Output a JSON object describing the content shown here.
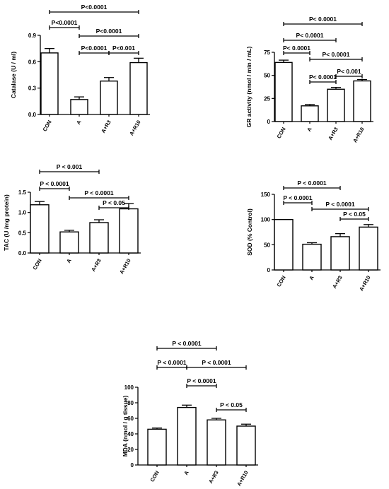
{
  "chart_data": [
    {
      "type": "bar",
      "categories": [
        "CON",
        "A",
        "A+R3",
        "A+R10"
      ],
      "values": [
        0.7,
        0.17,
        0.38,
        0.59
      ],
      "errors": [
        0.05,
        0.03,
        0.04,
        0.05
      ],
      "ylabel": "Catalase (U / ml)",
      "ylim": [
        0,
        0.9
      ],
      "yticks": [
        "0.0",
        "0.3",
        "0.6",
        "0.9"
      ],
      "comparisons": [
        {
          "from": 0,
          "to": 3,
          "label": "P<0.0001"
        },
        {
          "from": 0,
          "to": 1,
          "label": "P<0.0001"
        },
        {
          "from": 1,
          "to": 3,
          "label": "P<0.0001"
        },
        {
          "from": 1,
          "to": 2,
          "label": "P<0.0001"
        },
        {
          "from": 2,
          "to": 3,
          "label": "P<0.001"
        }
      ]
    },
    {
      "type": "bar",
      "categories": [
        "CON",
        "A",
        "A+R3",
        "A+R10"
      ],
      "values": [
        64,
        17,
        35,
        44
      ],
      "errors": [
        2.5,
        1.5,
        2.0,
        1.5
      ],
      "ylabel": "GR activity (nmol / min / mL)",
      "ylim": [
        0,
        75
      ],
      "yticks": [
        "0",
        "25",
        "50",
        "75"
      ],
      "comparisons": [
        {
          "from": 0,
          "to": 3,
          "label": "P< 0.0001"
        },
        {
          "from": 0,
          "to": 2,
          "label": "P< 0.0001"
        },
        {
          "from": 0,
          "to": 1,
          "label": "P< 0.0001"
        },
        {
          "from": 1,
          "to": 3,
          "label": "P< 0.0001"
        },
        {
          "from": 1,
          "to": 2,
          "label": "P< 0.0001"
        },
        {
          "from": 2,
          "to": 3,
          "label": "P< 0.001"
        }
      ]
    },
    {
      "type": "bar",
      "categories": [
        "CON",
        "A",
        "A+R3",
        "A+R10"
      ],
      "values": [
        1.19,
        0.52,
        0.75,
        1.09
      ],
      "errors": [
        0.08,
        0.04,
        0.07,
        0.13
      ],
      "ylabel": "TAC (U /mg protein)",
      "ylim": [
        0,
        1.5
      ],
      "yticks": [
        "0.0",
        "0.5",
        "1.0",
        "1.5"
      ],
      "comparisons": [
        {
          "from": 0,
          "to": 2,
          "label": "P < 0.001"
        },
        {
          "from": 1,
          "to": 3,
          "label": "P < 0.0001"
        },
        {
          "from": 0,
          "to": 1,
          "label": "P < 0.0001"
        },
        {
          "from": 2,
          "to": 3,
          "label": "P < 0.05"
        }
      ]
    },
    {
      "type": "bar",
      "categories": [
        "CON",
        "A",
        "A+R3",
        "A+R10"
      ],
      "values": [
        100,
        51,
        66,
        85
      ],
      "errors": [
        0,
        3,
        6,
        5
      ],
      "ylabel": "SOD (% Control)",
      "ylim": [
        0,
        150
      ],
      "yticks": [
        "0",
        "50",
        "100",
        "150"
      ],
      "comparisons": [
        {
          "from": 0,
          "to": 2,
          "label": "P < 0.0001"
        },
        {
          "from": 0,
          "to": 1,
          "label": "P < 0.0001"
        },
        {
          "from": 1,
          "to": 3,
          "label": "P < 0.0001"
        },
        {
          "from": 2,
          "to": 3,
          "label": "P < 0.05"
        }
      ]
    },
    {
      "type": "bar",
      "categories": [
        "CON",
        "A",
        "A+R3",
        "A+R10"
      ],
      "values": [
        46,
        74,
        58,
        50
      ],
      "errors": [
        1.5,
        3,
        2,
        2.5
      ],
      "ylabel": "MDA (nmol / g tissue)",
      "ylim": [
        0,
        100
      ],
      "yticks": [
        "0",
        "20",
        "40",
        "60",
        "80",
        "100"
      ],
      "comparisons": [
        {
          "from": 0,
          "to": 2,
          "label": "P < 0.0001"
        },
        {
          "from": 0,
          "to": 1,
          "label": "P < 0.0001"
        },
        {
          "from": 1,
          "to": 3,
          "label": "P < 0.0001"
        },
        {
          "from": 1,
          "to": 2,
          "label": "P < 0.0001"
        },
        {
          "from": 2,
          "to": 3,
          "label": "P < 0.05"
        }
      ]
    }
  ]
}
